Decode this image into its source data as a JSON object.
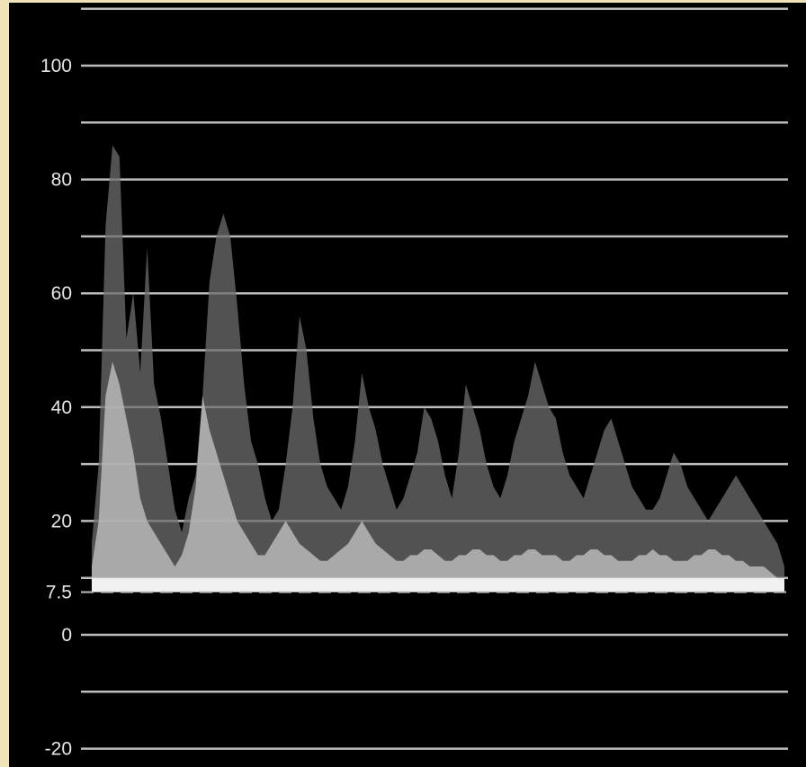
{
  "chart_data": {
    "type": "area",
    "title": "",
    "xlabel": "",
    "ylabel": "",
    "ylim": [
      -22,
      108
    ],
    "grid": true,
    "y_ticks": [
      {
        "value": 100,
        "label": "100"
      },
      {
        "value": 80,
        "label": "80"
      },
      {
        "value": 60,
        "label": "60"
      },
      {
        "value": 40,
        "label": "40"
      },
      {
        "value": 20,
        "label": "20"
      },
      {
        "value": 7.5,
        "label": "7.5"
      },
      {
        "value": 0,
        "label": "0"
      },
      {
        "value": -20,
        "label": "-20"
      }
    ],
    "gridlines": [
      110,
      100,
      90,
      80,
      70,
      60,
      50,
      40,
      30,
      20,
      10,
      0,
      -10,
      -20
    ],
    "setup_level": 7.5,
    "x": [
      0.0,
      0.01,
      0.02,
      0.03,
      0.04,
      0.05,
      0.06,
      0.07,
      0.08,
      0.09,
      0.1,
      0.11,
      0.12,
      0.13,
      0.14,
      0.15,
      0.16,
      0.17,
      0.18,
      0.19,
      0.2,
      0.21,
      0.22,
      0.23,
      0.24,
      0.25,
      0.26,
      0.27,
      0.28,
      0.29,
      0.3,
      0.31,
      0.32,
      0.33,
      0.34,
      0.35,
      0.36,
      0.37,
      0.38,
      0.39,
      0.4,
      0.41,
      0.42,
      0.43,
      0.44,
      0.45,
      0.46,
      0.47,
      0.48,
      0.49,
      0.5,
      0.51,
      0.52,
      0.53,
      0.54,
      0.55,
      0.56,
      0.57,
      0.58,
      0.59,
      0.6,
      0.61,
      0.62,
      0.63,
      0.64,
      0.65,
      0.66,
      0.67,
      0.68,
      0.69,
      0.7,
      0.71,
      0.72,
      0.73,
      0.74,
      0.75,
      0.76,
      0.77,
      0.78,
      0.79,
      0.8,
      0.81,
      0.82,
      0.83,
      0.84,
      0.85,
      0.86,
      0.87,
      0.88,
      0.89,
      0.9,
      0.91,
      0.92,
      0.93,
      0.94,
      0.95,
      0.96,
      0.97,
      0.98,
      0.99,
      1.0
    ],
    "series": [
      {
        "values": [
          16,
          30,
          72,
          86,
          84,
          52,
          60,
          46,
          68,
          44,
          38,
          30,
          22,
          18,
          24,
          28,
          42,
          62,
          70,
          74,
          70,
          58,
          44,
          34,
          30,
          24,
          20,
          22,
          30,
          40,
          56,
          50,
          38,
          30,
          26,
          24,
          22,
          26,
          34,
          46,
          40,
          36,
          30,
          26,
          22,
          24,
          28,
          32,
          40,
          38,
          34,
          28,
          24,
          32,
          44,
          40,
          36,
          30,
          26,
          24,
          28,
          34,
          38,
          42,
          48,
          44,
          40,
          38,
          32,
          28,
          26,
          24,
          28,
          32,
          36,
          38,
          34,
          30,
          26,
          24,
          22,
          22,
          24,
          28,
          32,
          30,
          26,
          24,
          22,
          20,
          22,
          24,
          26,
          28,
          26,
          24,
          22,
          20,
          18,
          16,
          12
        ]
      },
      {
        "values": [
          12,
          20,
          42,
          48,
          44,
          38,
          32,
          24,
          20,
          18,
          16,
          14,
          12,
          14,
          18,
          26,
          42,
          36,
          32,
          28,
          24,
          20,
          18,
          16,
          14,
          14,
          16,
          18,
          20,
          18,
          16,
          15,
          14,
          13,
          13,
          14,
          15,
          16,
          18,
          20,
          18,
          16,
          15,
          14,
          13,
          13,
          14,
          14,
          15,
          15,
          14,
          13,
          13,
          14,
          14,
          15,
          15,
          14,
          14,
          13,
          13,
          14,
          14,
          15,
          15,
          14,
          14,
          14,
          13,
          13,
          14,
          14,
          15,
          15,
          14,
          14,
          13,
          13,
          13,
          14,
          14,
          15,
          14,
          14,
          13,
          13,
          13,
          14,
          14,
          15,
          15,
          14,
          14,
          13,
          13,
          12,
          12,
          12,
          11,
          10,
          9
        ]
      },
      {
        "values": [
          10,
          10,
          10,
          10,
          10,
          10,
          10,
          10,
          10,
          10,
          10,
          10,
          10,
          10,
          10,
          10,
          10,
          10,
          10,
          10,
          10,
          10,
          10,
          10,
          10,
          10,
          10,
          10,
          10,
          10,
          10,
          10,
          10,
          10,
          10,
          10,
          10,
          10,
          10,
          10,
          10,
          10,
          10,
          10,
          10,
          10,
          10,
          10,
          10,
          10,
          10,
          10,
          10,
          10,
          10,
          10,
          10,
          10,
          10,
          10,
          10,
          10,
          10,
          10,
          10,
          10,
          10,
          10,
          10,
          10,
          10,
          10,
          10,
          10,
          10,
          10,
          10,
          10,
          10,
          10,
          10,
          10,
          10,
          10,
          10,
          10,
          10,
          10,
          10,
          10,
          10,
          10,
          10,
          10,
          10,
          10,
          10,
          10,
          10,
          10,
          10
        ]
      }
    ],
    "colors": {
      "background": "#000000",
      "gridline": "#bdbdbd",
      "trace_dim": "#6e6e6e",
      "trace_mid": "#b8b8b8",
      "trace_bright": "#f4f4f4",
      "label": "#e6e6e6"
    }
  }
}
